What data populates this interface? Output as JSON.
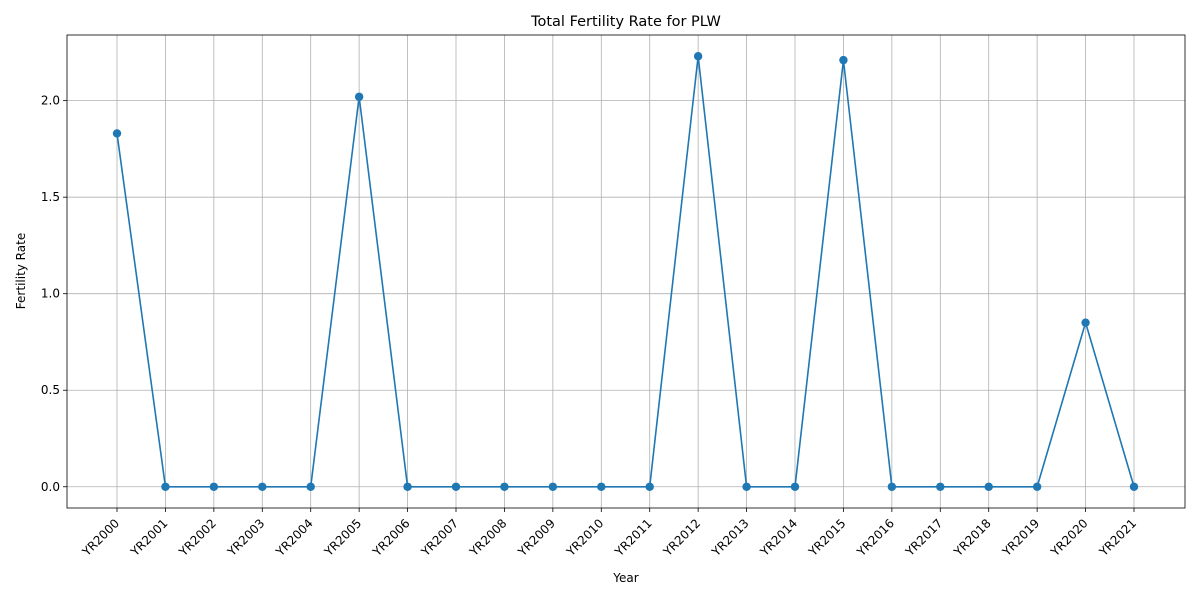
{
  "chart_data": {
    "type": "line",
    "title": "Total Fertility Rate for PLW",
    "xlabel": "Year",
    "ylabel": "Fertility Rate",
    "categories": [
      "YR2000",
      "YR2001",
      "YR2002",
      "YR2003",
      "YR2004",
      "YR2005",
      "YR2006",
      "YR2007",
      "YR2008",
      "YR2009",
      "YR2010",
      "YR2011",
      "YR2012",
      "YR2013",
      "YR2014",
      "YR2015",
      "YR2016",
      "YR2017",
      "YR2018",
      "YR2019",
      "YR2020",
      "YR2021"
    ],
    "series": [
      {
        "values": [
          1.83,
          0,
          0,
          0,
          0,
          2.02,
          0,
          0,
          0,
          0,
          0,
          0,
          2.23,
          0,
          0,
          2.21,
          0,
          0,
          0,
          0,
          0.85,
          0
        ],
        "color": "#1f77b4",
        "marker": "circle"
      }
    ],
    "ylim": [
      -0.11,
      2.34
    ],
    "yticks": [
      "0.0",
      "0.5",
      "1.0",
      "1.5",
      "2.0"
    ],
    "grid": true,
    "xtick_rotation": 45
  }
}
